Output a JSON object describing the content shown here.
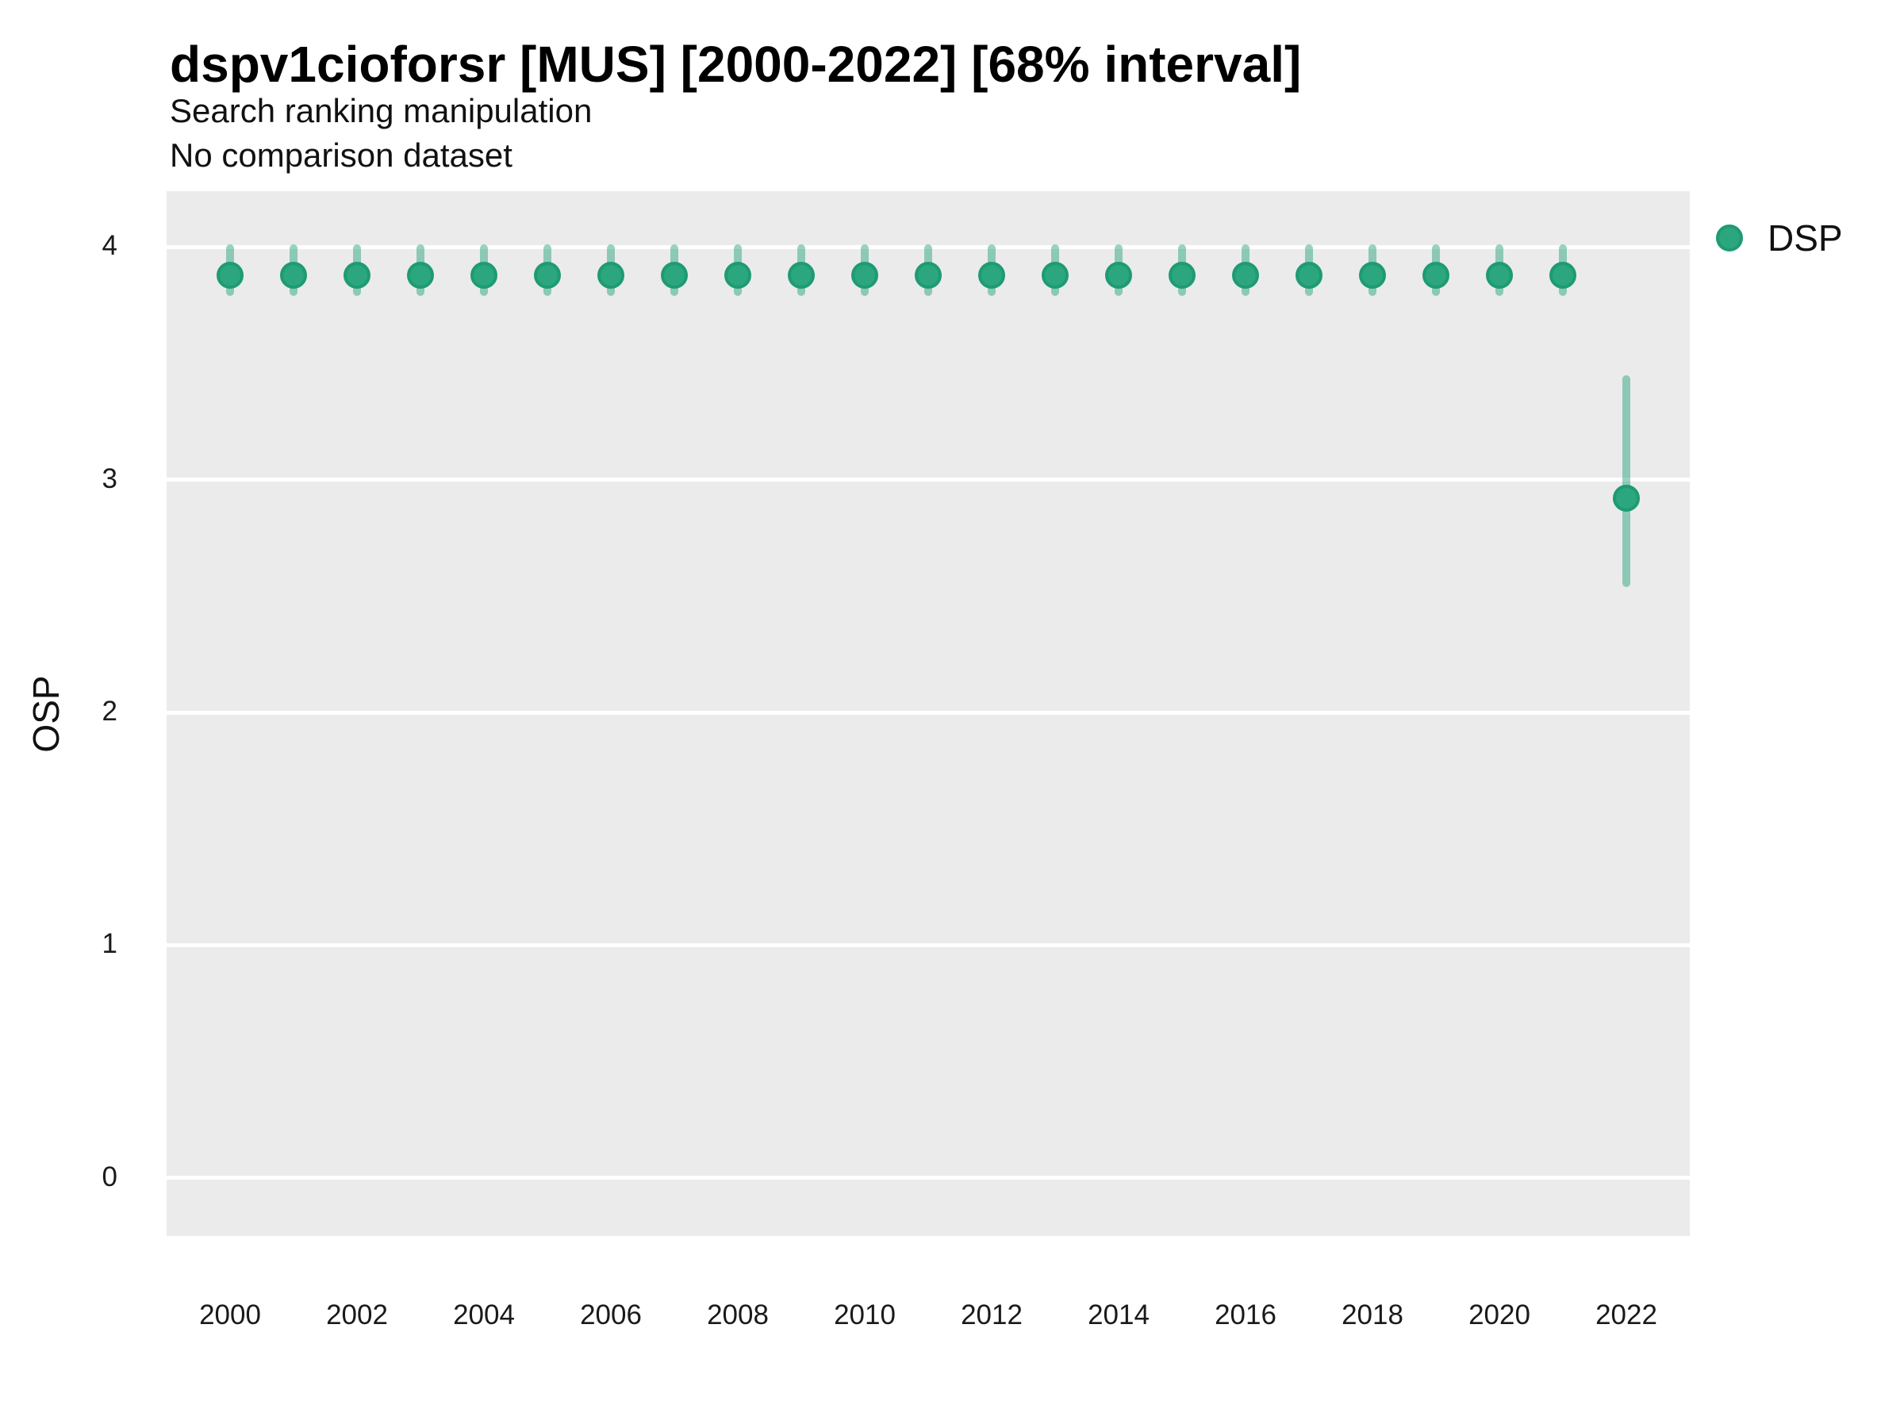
{
  "header": {
    "title": "dspv1cioforsr [MUS] [2000-2022] [68% interval]",
    "subtitle": "Search ranking manipulation",
    "note": "No comparison dataset"
  },
  "colors": {
    "panel_background": "#ebebeb",
    "gridline": "#ffffff",
    "point_fill": "#2ba67e",
    "point_stroke": "#1e9b72",
    "interval_bar": "rgba(27,158,119,0.45)",
    "text": "#111111"
  },
  "chart_data": {
    "type": "pointrange",
    "title": "dspv1cioforsr [MUS] [2000-2022] [68% interval]",
    "subtitle": "Search ranking manipulation",
    "note": "No comparison dataset",
    "xlabel": "",
    "ylabel": "OSP",
    "interval": "68%",
    "grid": "horizontal-major-only",
    "legend_position": "right",
    "xlim": [
      1999,
      2023
    ],
    "ylim": [
      -0.25,
      4.24
    ],
    "x_ticks": [
      2000,
      2002,
      2004,
      2006,
      2008,
      2010,
      2012,
      2014,
      2016,
      2018,
      2020,
      2022
    ],
    "y_ticks": [
      0,
      1,
      2,
      3,
      4
    ],
    "series": [
      {
        "name": "DSP",
        "color": "#1b9e77",
        "point_fill": "#2ba67e",
        "point_stroke": "#1e9b72",
        "interval_color": "rgba(27,158,119,0.45)",
        "points": [
          {
            "x": 2000,
            "y": 3.88,
            "lo": 3.79,
            "hi": 4.01
          },
          {
            "x": 2001,
            "y": 3.88,
            "lo": 3.79,
            "hi": 4.01
          },
          {
            "x": 2002,
            "y": 3.88,
            "lo": 3.79,
            "hi": 4.01
          },
          {
            "x": 2003,
            "y": 3.88,
            "lo": 3.79,
            "hi": 4.01
          },
          {
            "x": 2004,
            "y": 3.88,
            "lo": 3.79,
            "hi": 4.01
          },
          {
            "x": 2005,
            "y": 3.88,
            "lo": 3.79,
            "hi": 4.01
          },
          {
            "x": 2006,
            "y": 3.88,
            "lo": 3.79,
            "hi": 4.01
          },
          {
            "x": 2007,
            "y": 3.88,
            "lo": 3.79,
            "hi": 4.01
          },
          {
            "x": 2008,
            "y": 3.88,
            "lo": 3.79,
            "hi": 4.01
          },
          {
            "x": 2009,
            "y": 3.88,
            "lo": 3.79,
            "hi": 4.01
          },
          {
            "x": 2010,
            "y": 3.88,
            "lo": 3.79,
            "hi": 4.01
          },
          {
            "x": 2011,
            "y": 3.88,
            "lo": 3.79,
            "hi": 4.01
          },
          {
            "x": 2012,
            "y": 3.88,
            "lo": 3.79,
            "hi": 4.01
          },
          {
            "x": 2013,
            "y": 3.88,
            "lo": 3.79,
            "hi": 4.01
          },
          {
            "x": 2014,
            "y": 3.88,
            "lo": 3.79,
            "hi": 4.01
          },
          {
            "x": 2015,
            "y": 3.88,
            "lo": 3.79,
            "hi": 4.01
          },
          {
            "x": 2016,
            "y": 3.88,
            "lo": 3.79,
            "hi": 4.01
          },
          {
            "x": 2017,
            "y": 3.88,
            "lo": 3.79,
            "hi": 4.01
          },
          {
            "x": 2018,
            "y": 3.88,
            "lo": 3.79,
            "hi": 4.01
          },
          {
            "x": 2019,
            "y": 3.88,
            "lo": 3.79,
            "hi": 4.01
          },
          {
            "x": 2020,
            "y": 3.88,
            "lo": 3.79,
            "hi": 4.01
          },
          {
            "x": 2021,
            "y": 3.88,
            "lo": 3.79,
            "hi": 4.01
          },
          {
            "x": 2022,
            "y": 2.92,
            "lo": 2.54,
            "hi": 3.45
          }
        ]
      }
    ]
  }
}
